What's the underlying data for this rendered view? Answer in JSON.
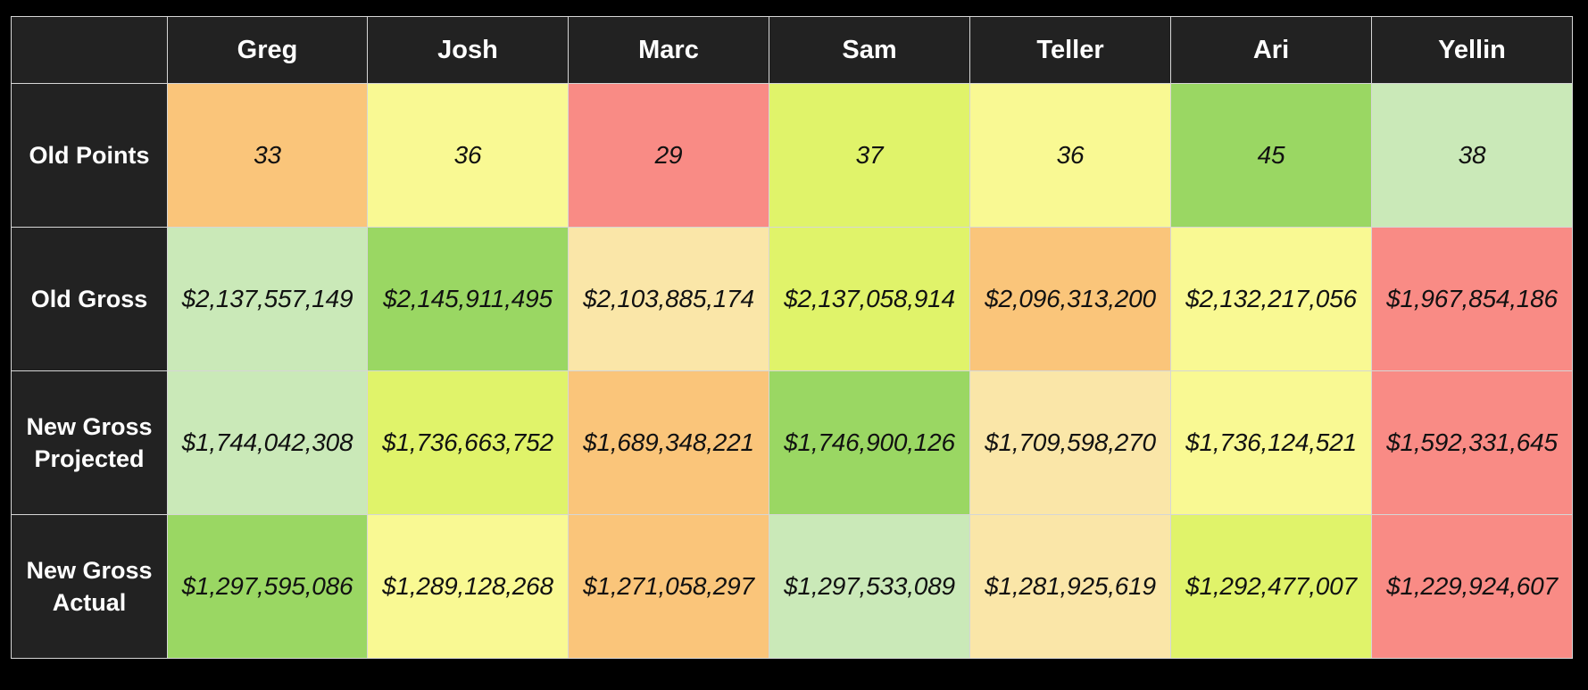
{
  "chart_data": {
    "type": "heatmap",
    "columns": [
      "Greg",
      "Josh",
      "Marc",
      "Sam",
      "Teller",
      "Ari",
      "Yellin"
    ],
    "rows": [
      {
        "label": "Old Points",
        "values": [
          33,
          36,
          29,
          37,
          36,
          45,
          38
        ],
        "display": [
          "33",
          "36",
          "29",
          "37",
          "36",
          "45",
          "38"
        ],
        "colors": [
          "#fac57a",
          "#f9f993",
          "#f98b85",
          "#e0f36a",
          "#f9f993",
          "#9ad763",
          "#cae9b8"
        ]
      },
      {
        "label": "Old Gross",
        "values": [
          2137557149,
          2145911495,
          2103885174,
          2137058914,
          2096313200,
          2132217056,
          1967854186
        ],
        "display": [
          "$2,137,557,149",
          "$2,145,911,495",
          "$2,103,885,174",
          "$2,137,058,914",
          "$2,096,313,200",
          "$2,132,217,056",
          "$1,967,854,186"
        ],
        "colors": [
          "#cae9b8",
          "#9ad763",
          "#fae6a8",
          "#e0f36a",
          "#fac57a",
          "#f9f993",
          "#f98b85"
        ]
      },
      {
        "label": "New Gross Projected",
        "values": [
          1744042308,
          1736663752,
          1689348221,
          1746900126,
          1709598270,
          1736124521,
          1592331645
        ],
        "display": [
          "$1,744,042,308",
          "$1,736,663,752",
          "$1,689,348,221",
          "$1,746,900,126",
          "$1,709,598,270",
          "$1,736,124,521",
          "$1,592,331,645"
        ],
        "colors": [
          "#cae9b8",
          "#e0f36a",
          "#fac57a",
          "#9ad763",
          "#fae6a8",
          "#f9f993",
          "#f98b85"
        ]
      },
      {
        "label": "New Gross Actual",
        "values": [
          1297595086,
          1289128268,
          1271058297,
          1297533089,
          1281925619,
          1292477007,
          1229924607
        ],
        "display": [
          "$1,297,595,086",
          "$1,289,128,268",
          "$1,271,058,297",
          "$1,297,533,089",
          "$1,281,925,619",
          "$1,292,477,007",
          "$1,229,924,607"
        ],
        "colors": [
          "#9ad763",
          "#f9f993",
          "#fac57a",
          "#cae9b8",
          "#fae6a8",
          "#e0f36a",
          "#f98b85"
        ]
      }
    ]
  }
}
